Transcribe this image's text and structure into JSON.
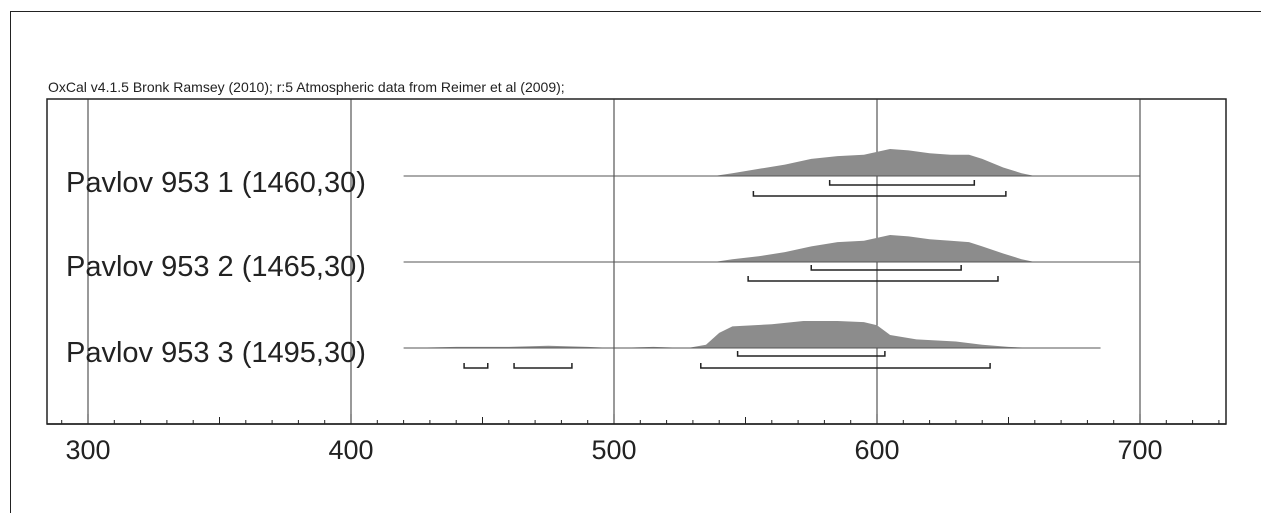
{
  "header": {
    "text": "OxCal v4.1.5 Bronk Ramsey (2010); r:5 Atmospheric data from Reimer et al (2009);"
  },
  "colors": {
    "distribution_fill": "#8c8c8c",
    "line": "#222222",
    "grid": "#333333"
  },
  "chart_data": {
    "type": "area",
    "title": "",
    "xlabel": "",
    "ylabel": "",
    "xlim": [
      283,
      733
    ],
    "xticks": [
      300,
      400,
      500,
      600,
      700
    ],
    "x_minor_step": 10,
    "grid": "vertical at major ticks",
    "series": [
      {
        "name": "Pavlov 953 1 (1460,30)",
        "distribution": [
          [
            420,
            0
          ],
          [
            538,
            0
          ],
          [
            545,
            2
          ],
          [
            555,
            5
          ],
          [
            565,
            8
          ],
          [
            575,
            12
          ],
          [
            585,
            14
          ],
          [
            595,
            15
          ],
          [
            605,
            19
          ],
          [
            612,
            18
          ],
          [
            620,
            16
          ],
          [
            628,
            15
          ],
          [
            635,
            15
          ],
          [
            640,
            12
          ],
          [
            648,
            6
          ],
          [
            655,
            2
          ],
          [
            660,
            0
          ],
          [
            700,
            0
          ]
        ],
        "range_68": [
          [
            582,
            637
          ]
        ],
        "range_95": [
          [
            553,
            649
          ]
        ]
      },
      {
        "name": "Pavlov 953 2 (1465,30)",
        "distribution": [
          [
            420,
            0
          ],
          [
            538,
            0
          ],
          [
            545,
            2
          ],
          [
            555,
            4
          ],
          [
            565,
            7
          ],
          [
            575,
            11
          ],
          [
            585,
            14
          ],
          [
            595,
            15
          ],
          [
            605,
            19
          ],
          [
            612,
            18
          ],
          [
            620,
            16
          ],
          [
            628,
            15
          ],
          [
            635,
            14
          ],
          [
            640,
            11
          ],
          [
            648,
            6
          ],
          [
            655,
            2
          ],
          [
            660,
            0
          ],
          [
            700,
            0
          ]
        ],
        "range_68": [
          [
            575,
            632
          ]
        ],
        "range_95": [
          [
            551,
            646
          ]
        ]
      },
      {
        "name": "Pavlov 953 3 (1495,30)",
        "distribution": [
          [
            420,
            0
          ],
          [
            440,
            1
          ],
          [
            460,
            1
          ],
          [
            475,
            2
          ],
          [
            490,
            1
          ],
          [
            500,
            0
          ],
          [
            515,
            1
          ],
          [
            528,
            0
          ],
          [
            535,
            3
          ],
          [
            540,
            14
          ],
          [
            545,
            20
          ],
          [
            560,
            22
          ],
          [
            572,
            25
          ],
          [
            585,
            25
          ],
          [
            595,
            24
          ],
          [
            600,
            21
          ],
          [
            605,
            12
          ],
          [
            615,
            8
          ],
          [
            630,
            6
          ],
          [
            640,
            3
          ],
          [
            650,
            1
          ],
          [
            660,
            0
          ],
          [
            685,
            0
          ]
        ],
        "range_68": [
          [
            547,
            603
          ]
        ],
        "range_95": [
          [
            443,
            452
          ],
          [
            462,
            484
          ],
          [
            533,
            643
          ]
        ]
      }
    ]
  }
}
